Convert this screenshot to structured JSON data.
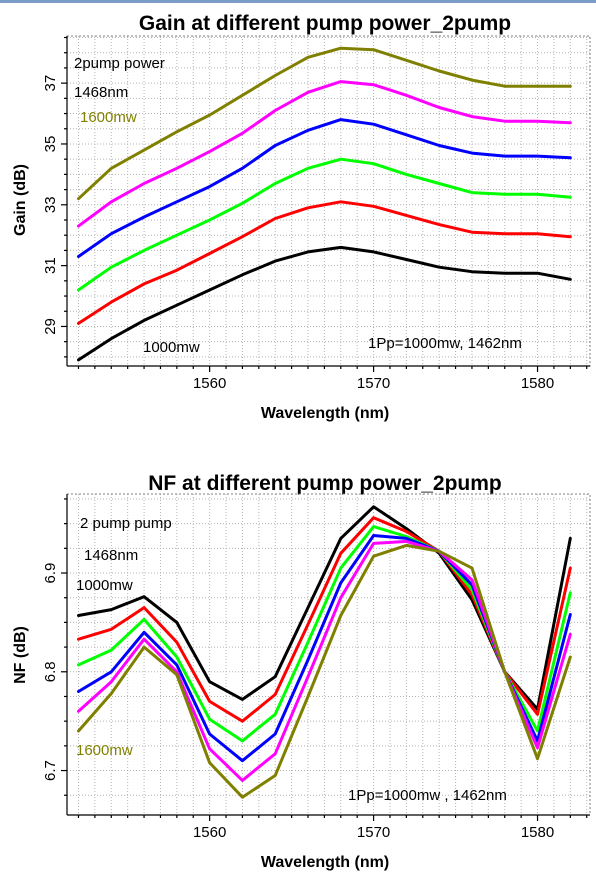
{
  "chart_data": [
    {
      "type": "line",
      "title": "Gain at different pump power_2pump",
      "xlabel": "Wavelength (nm)",
      "ylabel": "Gain (dB)",
      "xlim": [
        1551.3,
        1583.2
      ],
      "ylim": [
        27.7,
        38.55
      ],
      "xticks": [
        1560,
        1570,
        1580
      ],
      "yticks": [
        29,
        31,
        33,
        35,
        37
      ],
      "grid": true,
      "x": [
        1552,
        1554,
        1556,
        1558,
        1560,
        1562,
        1564,
        1566,
        1568,
        1570,
        1572,
        1574,
        1576,
        1578,
        1580,
        1582
      ],
      "series": [
        {
          "color": "#000000",
          "values": [
            27.9,
            28.6,
            29.2,
            29.7,
            30.2,
            30.7,
            31.15,
            31.45,
            31.6,
            31.45,
            31.2,
            30.95,
            30.8,
            30.75,
            30.75,
            30.55
          ]
        },
        {
          "color": "#ff0000",
          "values": [
            29.1,
            29.8,
            30.4,
            30.85,
            31.4,
            31.95,
            32.55,
            32.9,
            33.1,
            32.95,
            32.65,
            32.35,
            32.1,
            32.05,
            32.05,
            31.95
          ]
        },
        {
          "color": "#00ff00",
          "values": [
            30.2,
            30.95,
            31.5,
            32.0,
            32.5,
            33.05,
            33.7,
            34.2,
            34.5,
            34.35,
            34.0,
            33.7,
            33.4,
            33.35,
            33.35,
            33.25
          ]
        },
        {
          "color": "#0000ff",
          "values": [
            31.3,
            32.05,
            32.6,
            33.1,
            33.6,
            34.2,
            34.95,
            35.45,
            35.8,
            35.65,
            35.3,
            34.95,
            34.7,
            34.6,
            34.6,
            34.55
          ]
        },
        {
          "color": "#ff00ff",
          "values": [
            32.3,
            33.1,
            33.7,
            34.2,
            34.75,
            35.35,
            36.1,
            36.7,
            37.05,
            36.95,
            36.6,
            36.2,
            35.9,
            35.75,
            35.75,
            35.7
          ]
        },
        {
          "color": "#808000",
          "values": [
            33.2,
            34.2,
            34.8,
            35.4,
            35.95,
            36.6,
            37.25,
            37.85,
            38.15,
            38.1,
            37.75,
            37.4,
            37.1,
            36.9,
            36.9,
            36.9
          ]
        }
      ],
      "annotations": [
        {
          "text": "2pump power",
          "color": "#000000"
        },
        {
          "text": "1468nm",
          "color": "#000000"
        },
        {
          "text": "1600mw",
          "color": "#808000"
        },
        {
          "text": "1000mw",
          "color": "#000000"
        },
        {
          "text": "1Pp=1000mw, 1462nm",
          "color": "#000000"
        }
      ]
    },
    {
      "type": "line",
      "title": "NF at different pump power_2pump",
      "xlabel": "Wavelength (nm)",
      "ylabel": "NF (dB)",
      "xlim": [
        1551.3,
        1583.2
      ],
      "ylim": [
        6.655,
        6.98
      ],
      "xticks": [
        1560,
        1570,
        1580
      ],
      "yticks": [
        6.7,
        6.8,
        6.9
      ],
      "grid": true,
      "x": [
        1552,
        1554,
        1556,
        1558,
        1560,
        1562,
        1564,
        1566,
        1568,
        1570,
        1572,
        1574,
        1576,
        1578,
        1580,
        1582
      ],
      "series": [
        {
          "color": "#000000",
          "values": [
            6.857,
            6.863,
            6.876,
            6.85,
            6.79,
            6.772,
            6.795,
            6.865,
            6.935,
            6.967,
            6.945,
            6.92,
            6.873,
            6.8,
            6.762,
            6.935
          ]
        },
        {
          "color": "#ff0000",
          "values": [
            6.833,
            6.843,
            6.865,
            6.83,
            6.77,
            6.75,
            6.777,
            6.848,
            6.92,
            6.956,
            6.942,
            6.922,
            6.878,
            6.8,
            6.757,
            6.905
          ]
        },
        {
          "color": "#00ff00",
          "values": [
            6.807,
            6.822,
            6.853,
            6.815,
            6.752,
            6.73,
            6.757,
            6.83,
            6.905,
            6.947,
            6.937,
            6.922,
            6.883,
            6.8,
            6.74,
            6.88
          ]
        },
        {
          "color": "#0000ff",
          "values": [
            6.78,
            6.8,
            6.84,
            6.807,
            6.737,
            6.71,
            6.737,
            6.812,
            6.89,
            6.938,
            6.935,
            6.922,
            6.888,
            6.8,
            6.73,
            6.858
          ]
        },
        {
          "color": "#ff00ff",
          "values": [
            6.76,
            6.79,
            6.833,
            6.8,
            6.722,
            6.69,
            6.717,
            6.795,
            6.875,
            6.93,
            6.932,
            6.922,
            6.893,
            6.8,
            6.723,
            6.838
          ]
        },
        {
          "color": "#808000",
          "values": [
            6.74,
            6.778,
            6.825,
            6.797,
            6.708,
            6.673,
            6.695,
            6.775,
            6.857,
            6.917,
            6.928,
            6.922,
            6.905,
            6.8,
            6.712,
            6.815
          ]
        }
      ],
      "annotations": [
        {
          "text": "2 pump pump",
          "color": "#000000"
        },
        {
          "text": "1468nm",
          "color": "#000000"
        },
        {
          "text": "1000mw",
          "color": "#000000"
        },
        {
          "text": "1600mw",
          "color": "#808000"
        },
        {
          "text": "1Pp=1000mw , 1462nm",
          "color": "#000000"
        }
      ]
    }
  ]
}
